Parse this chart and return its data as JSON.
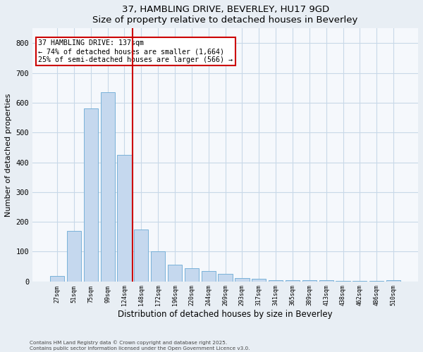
{
  "title1": "37, HAMBLING DRIVE, BEVERLEY, HU17 9GD",
  "title2": "Size of property relative to detached houses in Beverley",
  "xlabel": "Distribution of detached houses by size in Beverley",
  "ylabel": "Number of detached properties",
  "categories": [
    "27sqm",
    "51sqm",
    "75sqm",
    "99sqm",
    "124sqm",
    "148sqm",
    "172sqm",
    "196sqm",
    "220sqm",
    "244sqm",
    "269sqm",
    "293sqm",
    "317sqm",
    "341sqm",
    "365sqm",
    "389sqm",
    "413sqm",
    "438sqm",
    "462sqm",
    "486sqm",
    "510sqm"
  ],
  "values": [
    17,
    170,
    580,
    635,
    425,
    175,
    100,
    55,
    45,
    35,
    25,
    10,
    8,
    5,
    5,
    3,
    3,
    2,
    1,
    1,
    5
  ],
  "bar_color": "#c5d8ee",
  "bar_edge_color": "#6aaad4",
  "red_line_x": 4.5,
  "annotation_text": "37 HAMBLING DRIVE: 137sqm\n← 74% of detached houses are smaller (1,664)\n25% of semi-detached houses are larger (566) →",
  "annotation_box_color": "#ffffff",
  "annotation_box_edge_color": "#cc0000",
  "red_line_color": "#cc0000",
  "grid_color": "#c8d8e8",
  "ylim": [
    0,
    850
  ],
  "yticks": [
    0,
    100,
    200,
    300,
    400,
    500,
    600,
    700,
    800
  ],
  "footer1": "Contains HM Land Registry data © Crown copyright and database right 2025.",
  "footer2": "Contains public sector information licensed under the Open Government Licence v3.0.",
  "bg_color": "#e8eef4",
  "plot_bg_color": "#f5f8fc"
}
